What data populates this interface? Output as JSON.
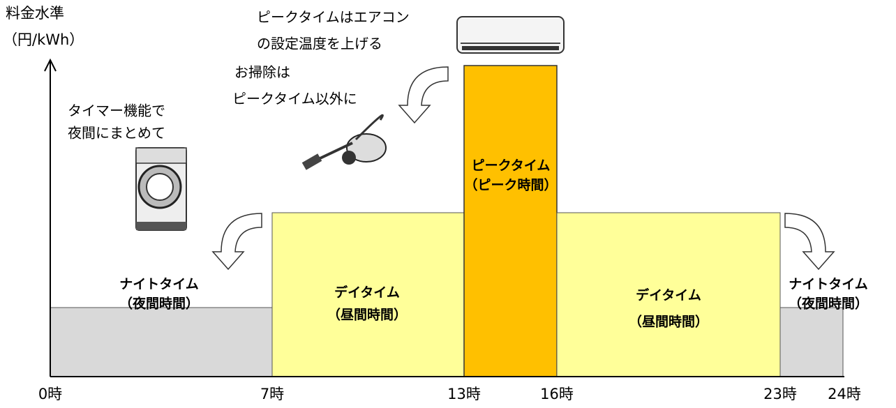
{
  "y_axis_label": [
    "料金水準",
    "（円/kWh）"
  ],
  "x_labels": [
    "0時",
    "7時",
    "13時",
    "16時",
    "23時",
    "24時"
  ],
  "zones": [
    {
      "label": [
        "ナイトタイム",
        "（夜間時間）"
      ]
    },
    {
      "label": [
        "デイタイム",
        "（昼間時間）"
      ]
    },
    {
      "label": [
        "ピークタイム",
        "（ピーク時間）"
      ]
    },
    {
      "label": [
        "デイタイム",
        "（昼間時間）"
      ]
    },
    {
      "label": [
        "ナイトタイム",
        "（夜間時間）"
      ]
    }
  ],
  "annotations": [
    {
      "lines": [
        "ピークタイムはエアコン",
        "の設定温度を上げる"
      ]
    },
    {
      "lines": [
        "お掃除は",
        "ピークタイム以外に"
      ]
    },
    {
      "lines": [
        "タイマー機能で",
        "夜間にまとめて"
      ]
    }
  ]
}
